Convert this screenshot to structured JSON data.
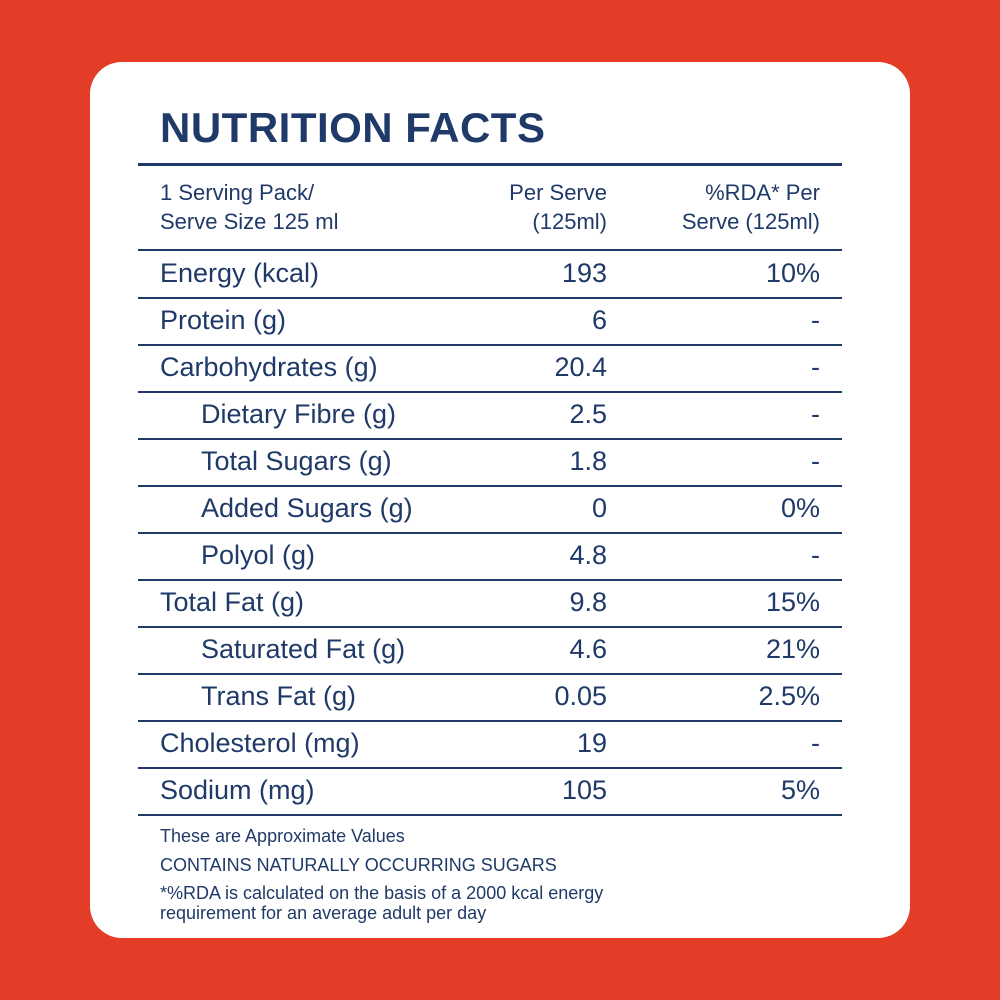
{
  "header": {
    "title": "NUTRITION FACTS"
  },
  "table": {
    "columns": [
      [
        "1 Serving Pack/",
        "Serve Size 125 ml"
      ],
      [
        "Per Serve",
        "(125ml)"
      ],
      [
        "%RDA* Per",
        "Serve (125ml)"
      ]
    ],
    "rows": [
      {
        "label": "Energy (kcal)",
        "per_serve": "193",
        "rda": "10%",
        "indent": false
      },
      {
        "label": "Protein (g)",
        "per_serve": "6",
        "rda": "-",
        "indent": false
      },
      {
        "label": "Carbohydrates (g)",
        "per_serve": "20.4",
        "rda": "-",
        "indent": false
      },
      {
        "label": "Dietary Fibre (g)",
        "per_serve": "2.5",
        "rda": "-",
        "indent": true
      },
      {
        "label": "Total Sugars (g)",
        "per_serve": "1.8",
        "rda": "-",
        "indent": true
      },
      {
        "label": "Added Sugars (g)",
        "per_serve": "0",
        "rda": "0%",
        "indent": true
      },
      {
        "label": "Polyol (g)",
        "per_serve": "4.8",
        "rda": "-",
        "indent": true
      },
      {
        "label": "Total Fat (g)",
        "per_serve": "9.8",
        "rda": "15%",
        "indent": false
      },
      {
        "label": "Saturated Fat (g)",
        "per_serve": "4.6",
        "rda": "21%",
        "indent": true
      },
      {
        "label": "Trans Fat (g)",
        "per_serve": "0.05",
        "rda": "2.5%",
        "indent": true
      },
      {
        "label": "Cholesterol (mg)",
        "per_serve": "19",
        "rda": "-",
        "indent": false
      },
      {
        "label": "Sodium (mg)",
        "per_serve": "105",
        "rda": "5%",
        "indent": false
      }
    ]
  },
  "footer": {
    "notes": [
      "These are Approximate Values",
      "CONTAINS NATURALLY OCCURRING SUGARS",
      "*%RDA is calculated on the basis of a 2000 kcal energy",
      "requirement for an average adult per day"
    ]
  }
}
